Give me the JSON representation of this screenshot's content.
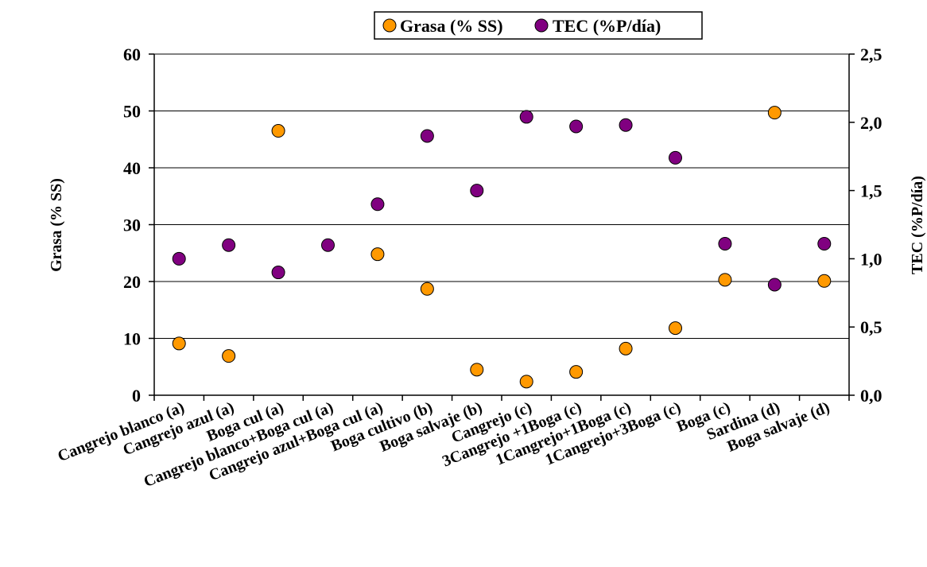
{
  "chart_data": {
    "type": "scatter",
    "categories": [
      "Cangrejo blanco (a)",
      "Cangrejo azul (a)",
      "Boga cul (a)",
      "Cangrejo blanco+Boga cul (a)",
      "Cangrejo azul+Boga cul (a)",
      "Boga cultivo (b)",
      "Boga salvaje (b)",
      "Cangrejo (c)",
      "3Cangrejo +1Boga (c)",
      "1Cangrejo+1Boga (c)",
      "1Cangrejo+3Boga (c)",
      "Boga (c)",
      "Sardina (d)",
      "Boga salvaje (d)"
    ],
    "series": [
      {
        "name": "Grasa (% SS)",
        "axis": "left",
        "color": "#FF9900",
        "values": [
          9.1,
          6.9,
          46.5,
          null,
          24.8,
          18.7,
          4.5,
          2.4,
          4.1,
          8.2,
          11.8,
          20.3,
          49.7,
          20.1
        ]
      },
      {
        "name": "TEC (%P/día)",
        "axis": "right",
        "color": "#800080",
        "values": [
          1.0,
          1.1,
          0.9,
          1.1,
          1.4,
          1.9,
          1.5,
          2.04,
          1.97,
          1.98,
          1.74,
          1.11,
          0.81,
          1.11
        ]
      }
    ],
    "ylabel": "Grasa (% SS)",
    "y2label": "TEC (%P/día)",
    "ylim": [
      0,
      60
    ],
    "yticks": [
      "0",
      "10",
      "20",
      "30",
      "40",
      "50",
      "60"
    ],
    "y2lim": [
      0,
      2.5
    ],
    "y2ticks": [
      "0,0",
      "0,5",
      "1,0",
      "1,5",
      "2,0",
      "2,5"
    ],
    "grid": "horizontal",
    "legend": "top"
  }
}
